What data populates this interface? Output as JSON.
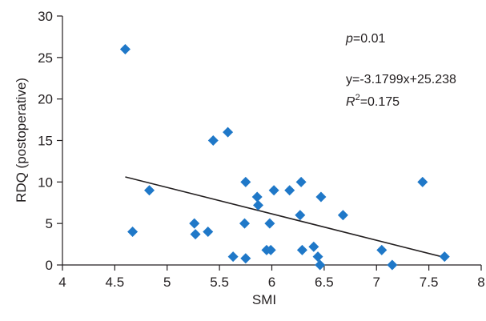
{
  "chart_data": {
    "type": "scatter",
    "xlabel": "SMI",
    "ylabel": "RDQ (postoperative)",
    "xlim": [
      4,
      8
    ],
    "ylim": [
      0,
      30
    ],
    "xticks": [
      "4",
      "4.5",
      "5",
      "5.5",
      "6",
      "6.5",
      "7",
      "7.5",
      "8"
    ],
    "yticks": [
      "0",
      "5",
      "10",
      "15",
      "20",
      "25",
      "30"
    ],
    "point_color": "#1f78c8",
    "series": [
      {
        "points": [
          {
            "x": 4.6,
            "y": 26
          },
          {
            "x": 4.67,
            "y": 4
          },
          {
            "x": 4.83,
            "y": 9
          },
          {
            "x": 5.26,
            "y": 5
          },
          {
            "x": 5.27,
            "y": 3.7
          },
          {
            "x": 5.39,
            "y": 4
          },
          {
            "x": 5.44,
            "y": 15
          },
          {
            "x": 5.58,
            "y": 16
          },
          {
            "x": 5.63,
            "y": 1
          },
          {
            "x": 5.74,
            "y": 5
          },
          {
            "x": 5.75,
            "y": 10
          },
          {
            "x": 5.75,
            "y": 0.8
          },
          {
            "x": 5.86,
            "y": 8.2
          },
          {
            "x": 5.87,
            "y": 7.2
          },
          {
            "x": 5.95,
            "y": 1.8
          },
          {
            "x": 5.98,
            "y": 5
          },
          {
            "x": 5.99,
            "y": 1.8
          },
          {
            "x": 6.02,
            "y": 9
          },
          {
            "x": 6.17,
            "y": 9
          },
          {
            "x": 6.27,
            "y": 6
          },
          {
            "x": 6.28,
            "y": 10
          },
          {
            "x": 6.29,
            "y": 1.8
          },
          {
            "x": 6.4,
            "y": 2.2
          },
          {
            "x": 6.44,
            "y": 1
          },
          {
            "x": 6.46,
            "y": 0
          },
          {
            "x": 6.47,
            "y": 8.2
          },
          {
            "x": 6.68,
            "y": 6
          },
          {
            "x": 7.05,
            "y": 1.8
          },
          {
            "x": 7.15,
            "y": 0
          },
          {
            "x": 7.44,
            "y": 10
          },
          {
            "x": 7.65,
            "y": 1
          }
        ]
      }
    ],
    "trendline": {
      "slope": -3.1799,
      "intercept": 25.238,
      "x_range": [
        4.6,
        7.65
      ]
    },
    "annotations": {
      "p_symbol": "p",
      "p_value": "=0.01",
      "equation": "y=-3.1799x+25.238",
      "r_symbol": "R",
      "r_exp": "2",
      "r_value": "=0.175"
    }
  }
}
